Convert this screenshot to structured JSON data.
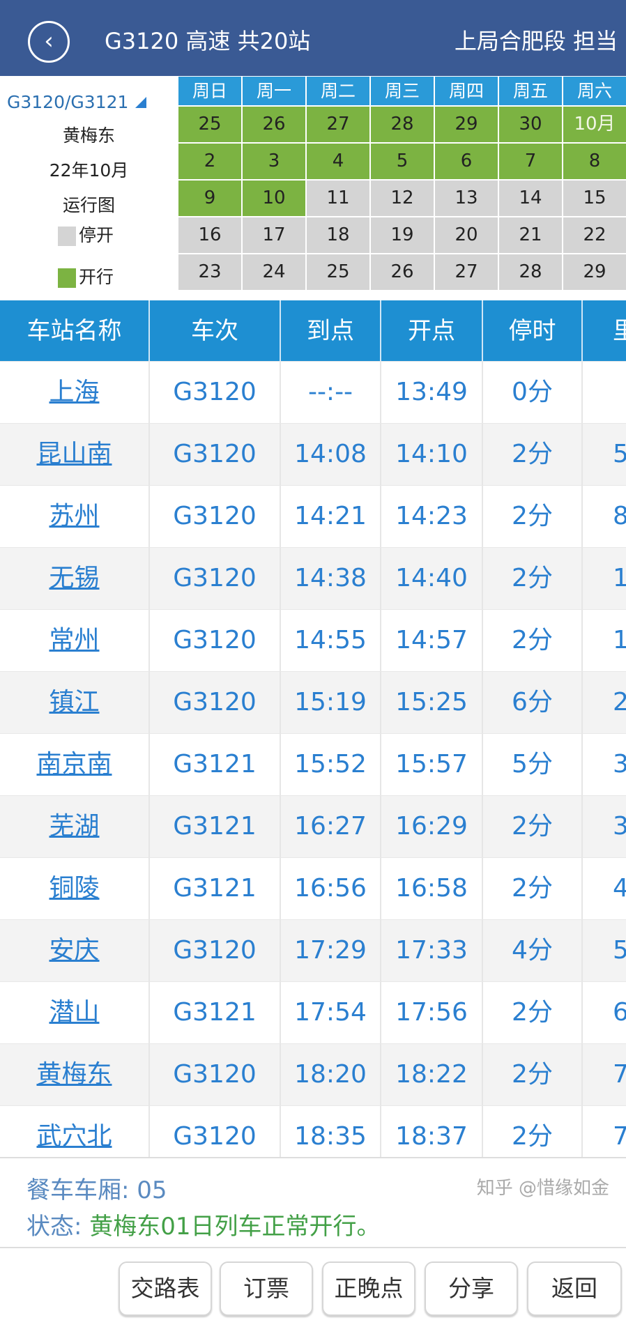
{
  "header": {
    "back_icon": "chevron-left-circle-icon",
    "title": "G3120 高速 共20站",
    "responsible": "上局合肥段 担当",
    "bg_color": "#3a5a94"
  },
  "calendar": {
    "train_selector": "G3120/G3121",
    "station": "黄梅东",
    "month": "22年10月",
    "label": "运行图",
    "legend": {
      "off": "停开",
      "on": "开行",
      "off_color": "#d4d4d4",
      "on_color": "#7cb342"
    },
    "weekdays": [
      "周日",
      "周一",
      "周二",
      "周三",
      "周四",
      "周五",
      "周六"
    ],
    "days": [
      {
        "d": "25",
        "on": true
      },
      {
        "d": "26",
        "on": true
      },
      {
        "d": "27",
        "on": true
      },
      {
        "d": "28",
        "on": true
      },
      {
        "d": "29",
        "on": true
      },
      {
        "d": "30",
        "on": true
      },
      {
        "d": "10月",
        "on": true
      },
      {
        "d": "2",
        "on": true
      },
      {
        "d": "3",
        "on": true
      },
      {
        "d": "4",
        "on": true
      },
      {
        "d": "5",
        "on": true
      },
      {
        "d": "6",
        "on": true
      },
      {
        "d": "7",
        "on": true
      },
      {
        "d": "8",
        "on": true
      },
      {
        "d": "9",
        "on": true
      },
      {
        "d": "10",
        "on": true
      },
      {
        "d": "11",
        "on": false
      },
      {
        "d": "12",
        "on": false
      },
      {
        "d": "13",
        "on": false
      },
      {
        "d": "14",
        "on": false
      },
      {
        "d": "15",
        "on": false
      },
      {
        "d": "16",
        "on": false
      },
      {
        "d": "17",
        "on": false
      },
      {
        "d": "18",
        "on": false
      },
      {
        "d": "19",
        "on": false
      },
      {
        "d": "20",
        "on": false
      },
      {
        "d": "21",
        "on": false
      },
      {
        "d": "22",
        "on": false
      },
      {
        "d": "23",
        "on": false
      },
      {
        "d": "24",
        "on": false
      },
      {
        "d": "25",
        "on": false
      },
      {
        "d": "26",
        "on": false
      },
      {
        "d": "27",
        "on": false
      },
      {
        "d": "28",
        "on": false
      },
      {
        "d": "29",
        "on": false
      }
    ]
  },
  "table": {
    "headers": [
      "车站名称",
      "车次",
      "到点",
      "开点",
      "停时",
      "里"
    ],
    "rows": [
      [
        "上海",
        "G3120",
        "--:--",
        "13:49",
        "0分",
        ""
      ],
      [
        "昆山南",
        "G3120",
        "14:08",
        "14:10",
        "2分",
        "5"
      ],
      [
        "苏州",
        "G3120",
        "14:21",
        "14:23",
        "2分",
        "8"
      ],
      [
        "无锡",
        "G3120",
        "14:38",
        "14:40",
        "2分",
        "1"
      ],
      [
        "常州",
        "G3120",
        "14:55",
        "14:57",
        "2分",
        "1"
      ],
      [
        "镇江",
        "G3120",
        "15:19",
        "15:25",
        "6分",
        "2"
      ],
      [
        "南京南",
        "G3121",
        "15:52",
        "15:57",
        "5分",
        "3"
      ],
      [
        "芜湖",
        "G3121",
        "16:27",
        "16:29",
        "2分",
        "3"
      ],
      [
        "铜陵",
        "G3121",
        "16:56",
        "16:58",
        "2分",
        "4"
      ],
      [
        "安庆",
        "G3120",
        "17:29",
        "17:33",
        "4分",
        "5"
      ],
      [
        "潜山",
        "G3121",
        "17:54",
        "17:56",
        "2分",
        "6"
      ],
      [
        "黄梅东",
        "G3120",
        "18:20",
        "18:22",
        "2分",
        "7"
      ],
      [
        "武穴北",
        "G3120",
        "18:35",
        "18:37",
        "2分",
        "7"
      ]
    ]
  },
  "info": {
    "dining_label": "餐车车厢: ",
    "dining_value": "05",
    "status_label": "状态: ",
    "status_value": "黄梅东01日列车正常开行。"
  },
  "buttons": [
    "交路表",
    "订票",
    "正晚点",
    "分享",
    "返回"
  ],
  "watermark": "知乎 @惜缘如金"
}
